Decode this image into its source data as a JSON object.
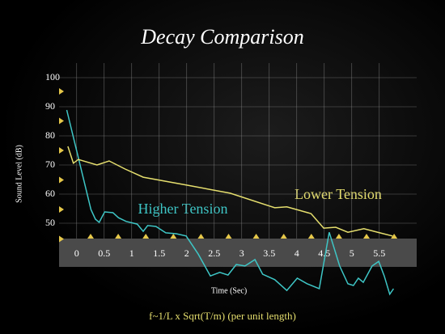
{
  "chart_data": {
    "type": "line",
    "title": "Decay Comparison",
    "xlabel": "Time (Sec)",
    "ylabel": "Sound Level (dB)",
    "footnote": "f~1/L x Sqrt(T/m) (per unit length)",
    "xlim": [
      -0.32,
      6.18
    ],
    "xticks": [
      0,
      0.5,
      1,
      1.5,
      2,
      2.5,
      3,
      3.5,
      4,
      4.5,
      5,
      5.5
    ],
    "ylim": [
      25,
      105
    ],
    "yticks": [
      50,
      60,
      70,
      80,
      90,
      100
    ],
    "grid": true,
    "series": [
      {
        "name": "Higher Tension",
        "color": "#3ec6c6",
        "x": [
          -0.18,
          0.26,
          0.34,
          0.41,
          0.51,
          0.66,
          0.76,
          0.9,
          1.1,
          1.21,
          1.29,
          1.44,
          1.62,
          1.81,
          1.99,
          2.21,
          2.43,
          2.6,
          2.75,
          2.9,
          3.06,
          3.24,
          3.38,
          3.6,
          3.82,
          4.01,
          4.19,
          4.41,
          4.59,
          4.78,
          4.93,
          5.03,
          5.12,
          5.21,
          5.37,
          5.49,
          5.59,
          5.69,
          5.76
        ],
        "values": [
          88.9,
          54.7,
          51.4,
          50.3,
          53.9,
          53.6,
          51.9,
          50.6,
          49.7,
          47.2,
          49.2,
          48.9,
          46.7,
          46.4,
          45.6,
          39.4,
          31.9,
          33.1,
          32.2,
          35.8,
          35.3,
          37.5,
          32.5,
          30.6,
          26.9,
          31.1,
          29.2,
          27.5,
          46.9,
          35.3,
          29.2,
          28.6,
          31.1,
          29.7,
          35.3,
          36.9,
          31.9,
          25.6,
          27.5
        ]
      },
      {
        "name": "Lower Tension",
        "color": "#e6df6e",
        "x": [
          -0.16,
          -0.06,
          0.03,
          0.37,
          0.59,
          0.88,
          1.21,
          1.99,
          2.79,
          3.6,
          3.82,
          4.26,
          4.49,
          4.71,
          4.93,
          5.22,
          5.51,
          5.74
        ],
        "values": [
          76.4,
          70.6,
          71.9,
          70,
          71.4,
          68.6,
          65.8,
          63.1,
          60.3,
          55.3,
          55.6,
          53.3,
          48.3,
          48.6,
          46.9,
          48.1,
          46.7,
          45.6
        ]
      }
    ]
  }
}
